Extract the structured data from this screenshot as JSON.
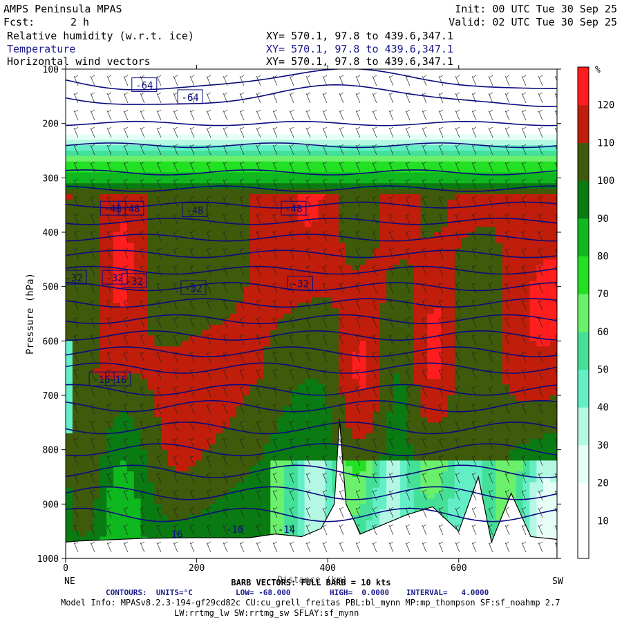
{
  "header": {
    "model": "AMPS Peninsula MPAS",
    "fcst_label": "Fcst:",
    "fcst_value": "2 h",
    "init": "Init: 00 UTC Tue 30 Sep 25",
    "valid": "Valid: 02 UTC Tue 30 Sep 25",
    "fields": [
      {
        "name": "Relative humidity (w.r.t. ice)",
        "xy": "XY= 570.1, 97.8 to 439.6,347.1"
      },
      {
        "name": "Temperature",
        "xy": "XY= 570.1, 97.8 to 439.6,347.1"
      },
      {
        "name": "Horizontal wind vectors",
        "xy": "XY= 570.1, 97.8 to 439.6,347.1"
      }
    ]
  },
  "chart_data": {
    "type": "heatmap",
    "ylabel": "Pressure (hPa)",
    "xlabel": "Distance (km)",
    "x_ticks": [
      "0",
      "200",
      "400",
      "600"
    ],
    "x_tick_values": [
      0,
      200,
      400,
      600
    ],
    "xlim": [
      0,
      750
    ],
    "y_ticks": [
      "100",
      "200",
      "300",
      "400",
      "500",
      "600",
      "700",
      "800",
      "900",
      "1000"
    ],
    "y_tick_values": [
      100,
      200,
      300,
      400,
      500,
      600,
      700,
      800,
      900,
      1000
    ],
    "ylim": [
      1000,
      100
    ],
    "left_end": "NE",
    "right_end": "SW",
    "colorbar": {
      "unit": "%",
      "levels": [
        "10",
        "20",
        "30",
        "40",
        "50",
        "60",
        "70",
        "80",
        "90",
        "100",
        "110",
        "120"
      ],
      "colors": [
        "#ffffff",
        "#ffffff",
        "#e6fff6",
        "#b4f8e4",
        "#64eec6",
        "#44e098",
        "#6af06a",
        "#22e022",
        "#0fb81f",
        "#0a7a12",
        "#3e5a0a",
        "#c01e0a",
        "#ff1e1e"
      ]
    },
    "temperature_contour_labels": [
      {
        "text": "-64",
        "x": 120,
        "p": 130
      },
      {
        "text": "-64",
        "x": 190,
        "p": 152
      },
      {
        "text": "-48",
        "x": 72,
        "p": 357
      },
      {
        "text": "-48",
        "x": 100,
        "p": 357
      },
      {
        "text": "-48",
        "x": 197,
        "p": 360
      },
      {
        "text": "-48",
        "x": 348,
        "p": 357
      },
      {
        "text": "-32",
        "x": 13,
        "p": 484
      },
      {
        "text": "-32",
        "x": 75,
        "p": 484
      },
      {
        "text": "-32",
        "x": 105,
        "p": 490
      },
      {
        "text": "-32",
        "x": 195,
        "p": 503
      },
      {
        "text": "-32",
        "x": 358,
        "p": 495
      },
      {
        "text": "-16",
        "x": 55,
        "p": 671
      },
      {
        "text": "-16",
        "x": 80,
        "p": 671
      }
    ],
    "surface_labels": [
      {
        "text": "16",
        "x": 170,
        "p": 962
      },
      {
        "text": "-10",
        "x": 258,
        "p": 953
      },
      {
        "text": "-14",
        "x": 337,
        "p": 953
      }
    ],
    "barb_note": "BARB VECTORS: FULL BARB = 10 kts",
    "contours": {
      "units_label": "CONTOURS:  UNITS=°C",
      "low": "LOW= -68.000",
      "high": "HIGH=  0.0000",
      "interval": "INTERVAL=   4.0000"
    }
  },
  "footer": {
    "model_info": "Model Info: MPASv8.2.3-194-gf29cd82c CU:cu_grell_freitas PBL:bl_mynn MP:mp_thompson SF:sf_noahmp 2.7",
    "model_info2": "LW:rrtmg_lw SW:rrtmg_sw SFLAY:sf_mynn"
  }
}
